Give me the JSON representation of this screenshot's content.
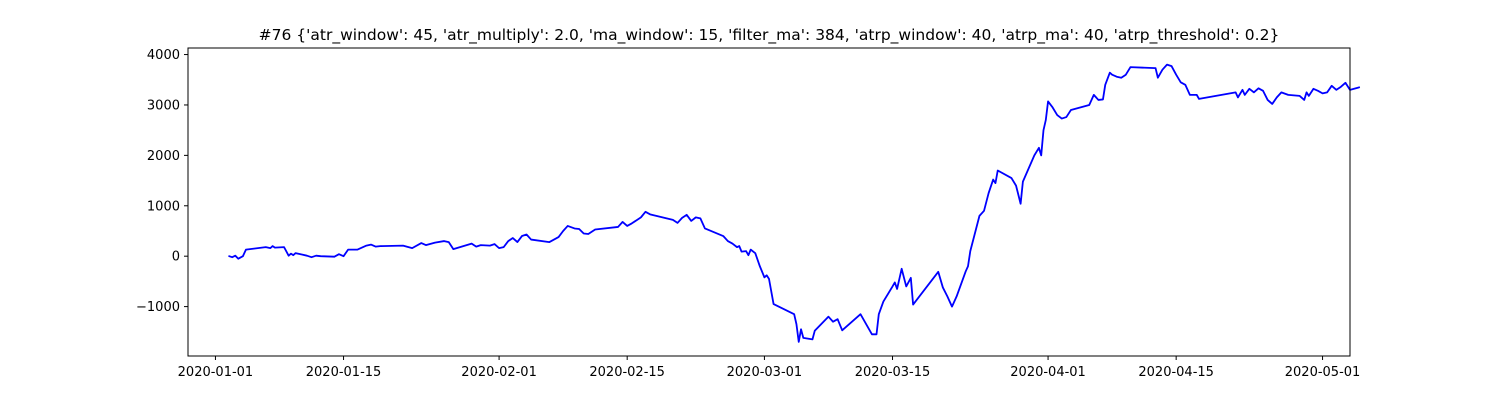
{
  "chart_data": {
    "type": "line",
    "title": "#76 {'atr_window': 45, 'atr_multiply': 2.0, 'ma_window': 15, 'filter_ma': 384, 'atrp_window': 40, 'atrp_ma': 40, 'atrp_threshold': 0.2}",
    "xlabel": "",
    "ylabel": "",
    "xlim": [
      "2019-12-29",
      "2020-05-04"
    ],
    "ylim": [
      -1980,
      4130
    ],
    "grid": false,
    "x_ticks": [
      "2020-01-01",
      "2020-01-15",
      "2020-02-01",
      "2020-02-15",
      "2020-03-01",
      "2020-03-15",
      "2020-04-01",
      "2020-04-15",
      "2020-05-01"
    ],
    "y_ticks": [
      -1000,
      0,
      1000,
      2000,
      3000,
      4000
    ],
    "y_tick_labels": [
      "−1000",
      "0",
      "1000",
      "2000",
      "3000",
      "4000"
    ],
    "series": [
      {
        "color": "#0000ff",
        "points": [
          [
            "2020-01-02 12:00",
            0
          ],
          [
            "2020-01-02 20:00",
            -20
          ],
          [
            "2020-01-03 04:00",
            10
          ],
          [
            "2020-01-03 12:00",
            -50
          ],
          [
            "2020-01-04 00:00",
            0
          ],
          [
            "2020-01-04 08:00",
            130
          ],
          [
            "2020-01-06 12:00",
            180
          ],
          [
            "2020-01-07 00:00",
            160
          ],
          [
            "2020-01-07 06:00",
            200
          ],
          [
            "2020-01-07 12:00",
            170
          ],
          [
            "2020-01-08 12:00",
            180
          ],
          [
            "2020-01-09 00:00",
            10
          ],
          [
            "2020-01-09 06:00",
            50
          ],
          [
            "2020-01-09 12:00",
            20
          ],
          [
            "2020-01-09 18:00",
            60
          ],
          [
            "2020-01-10 12:00",
            30
          ],
          [
            "2020-01-11 00:00",
            10
          ],
          [
            "2020-01-11 12:00",
            -20
          ],
          [
            "2020-01-12 00:00",
            10
          ],
          [
            "2020-01-12 12:00",
            0
          ],
          [
            "2020-01-14 00:00",
            -10
          ],
          [
            "2020-01-14 12:00",
            40
          ],
          [
            "2020-01-15 00:00",
            0
          ],
          [
            "2020-01-15 12:00",
            130
          ],
          [
            "2020-01-16 12:00",
            130
          ],
          [
            "2020-01-17 12:00",
            210
          ],
          [
            "2020-01-18 00:00",
            230
          ],
          [
            "2020-01-18 12:00",
            190
          ],
          [
            "2020-01-19 00:00",
            200
          ],
          [
            "2020-01-21 12:00",
            210
          ],
          [
            "2020-01-22 12:00",
            160
          ],
          [
            "2020-01-23 12:00",
            260
          ],
          [
            "2020-01-24 00:00",
            220
          ],
          [
            "2020-01-25 00:00",
            270
          ],
          [
            "2020-01-26 00:00",
            300
          ],
          [
            "2020-01-26 12:00",
            280
          ],
          [
            "2020-01-27 00:00",
            140
          ],
          [
            "2020-01-29 00:00",
            250
          ],
          [
            "2020-01-29 12:00",
            190
          ],
          [
            "2020-01-30 00:00",
            220
          ],
          [
            "2020-01-31 00:00",
            210
          ],
          [
            "2020-01-31 12:00",
            240
          ],
          [
            "2020-02-01 00:00",
            160
          ],
          [
            "2020-02-01 12:00",
            180
          ],
          [
            "2020-02-02 00:00",
            300
          ],
          [
            "2020-02-02 12:00",
            360
          ],
          [
            "2020-02-03 00:00",
            280
          ],
          [
            "2020-02-03 12:00",
            400
          ],
          [
            "2020-02-04 00:00",
            430
          ],
          [
            "2020-02-04 12:00",
            330
          ],
          [
            "2020-02-06 12:00",
            280
          ],
          [
            "2020-02-07 12:00",
            380
          ],
          [
            "2020-02-08 00:00",
            500
          ],
          [
            "2020-02-08 12:00",
            600
          ],
          [
            "2020-02-09 06:00",
            550
          ],
          [
            "2020-02-09 18:00",
            540
          ],
          [
            "2020-02-10 06:00",
            450
          ],
          [
            "2020-02-10 18:00",
            440
          ],
          [
            "2020-02-11 12:00",
            530
          ],
          [
            "2020-02-14 00:00",
            580
          ],
          [
            "2020-02-14 12:00",
            680
          ],
          [
            "2020-02-15 00:00",
            600
          ],
          [
            "2020-02-15 12:00",
            650
          ],
          [
            "2020-02-16 12:00",
            770
          ],
          [
            "2020-02-17 00:00",
            880
          ],
          [
            "2020-02-17 12:00",
            830
          ],
          [
            "2020-02-20 00:00",
            720
          ],
          [
            "2020-02-20 12:00",
            660
          ],
          [
            "2020-02-21 00:00",
            760
          ],
          [
            "2020-02-21 12:00",
            820
          ],
          [
            "2020-02-22 00:00",
            700
          ],
          [
            "2020-02-22 12:00",
            770
          ],
          [
            "2020-02-23 00:00",
            750
          ],
          [
            "2020-02-23 12:00",
            550
          ],
          [
            "2020-02-25 12:00",
            400
          ],
          [
            "2020-02-26 00:00",
            300
          ],
          [
            "2020-02-26 12:00",
            250
          ],
          [
            "2020-02-27 00:00",
            180
          ],
          [
            "2020-02-27 06:00",
            200
          ],
          [
            "2020-02-27 12:00",
            90
          ],
          [
            "2020-02-28 00:00",
            100
          ],
          [
            "2020-02-28 06:00",
            20
          ],
          [
            "2020-02-28 12:00",
            130
          ],
          [
            "2020-02-29 00:00",
            60
          ],
          [
            "2020-02-29 12:00",
            -200
          ],
          [
            "2020-03-01 00:00",
            -420
          ],
          [
            "2020-03-01 06:00",
            -380
          ],
          [
            "2020-03-01 12:00",
            -450
          ],
          [
            "2020-03-02 00:00",
            -950
          ],
          [
            "2020-03-04 06:00",
            -1150
          ],
          [
            "2020-03-04 12:00",
            -1350
          ],
          [
            "2020-03-04 18:00",
            -1700
          ],
          [
            "2020-03-05 00:00",
            -1450
          ],
          [
            "2020-03-05 06:00",
            -1620
          ],
          [
            "2020-03-06 06:00",
            -1650
          ],
          [
            "2020-03-06 12:00",
            -1480
          ],
          [
            "2020-03-08 00:00",
            -1200
          ],
          [
            "2020-03-08 12:00",
            -1300
          ],
          [
            "2020-03-09 00:00",
            -1250
          ],
          [
            "2020-03-09 12:00",
            -1470
          ],
          [
            "2020-03-11 12:00",
            -1150
          ],
          [
            "2020-03-12 18:00",
            -1550
          ],
          [
            "2020-03-13 06:00",
            -1550
          ],
          [
            "2020-03-13 12:00",
            -1150
          ],
          [
            "2020-03-14 00:00",
            -900
          ],
          [
            "2020-03-15 00:00",
            -600
          ],
          [
            "2020-03-15 06:00",
            -520
          ],
          [
            "2020-03-15 12:00",
            -650
          ],
          [
            "2020-03-16 00:00",
            -250
          ],
          [
            "2020-03-16 12:00",
            -600
          ],
          [
            "2020-03-17 00:00",
            -430
          ],
          [
            "2020-03-17 06:00",
            -960
          ],
          [
            "2020-03-20 00:00",
            -310
          ],
          [
            "2020-03-20 12:00",
            -620
          ],
          [
            "2020-03-21 00:00",
            -800
          ],
          [
            "2020-03-21 12:00",
            -1000
          ],
          [
            "2020-03-22 00:00",
            -800
          ],
          [
            "2020-03-23 00:00",
            -300
          ],
          [
            "2020-03-23 06:00",
            -200
          ],
          [
            "2020-03-23 12:00",
            100
          ],
          [
            "2020-03-24 00:00",
            450
          ],
          [
            "2020-03-24 12:00",
            800
          ],
          [
            "2020-03-25 00:00",
            900
          ],
          [
            "2020-03-25 12:00",
            1250
          ],
          [
            "2020-03-26 00:00",
            1520
          ],
          [
            "2020-03-26 06:00",
            1450
          ],
          [
            "2020-03-26 12:00",
            1700
          ],
          [
            "2020-03-28 00:00",
            1550
          ],
          [
            "2020-03-28 12:00",
            1400
          ],
          [
            "2020-03-29 00:00",
            1040
          ],
          [
            "2020-03-29 06:00",
            1480
          ],
          [
            "2020-03-30 12:00",
            2000
          ],
          [
            "2020-03-31 00:00",
            2150
          ],
          [
            "2020-03-31 06:00",
            2000
          ],
          [
            "2020-03-31 12:00",
            2500
          ],
          [
            "2020-03-31 18:00",
            2700
          ],
          [
            "2020-04-01 00:00",
            3070
          ],
          [
            "2020-04-01 12:00",
            2950
          ],
          [
            "2020-04-02 00:00",
            2800
          ],
          [
            "2020-04-02 12:00",
            2730
          ],
          [
            "2020-04-03 00:00",
            2760
          ],
          [
            "2020-04-03 12:00",
            2900
          ],
          [
            "2020-04-05 12:00",
            3000
          ],
          [
            "2020-04-06 00:00",
            3200
          ],
          [
            "2020-04-06 06:00",
            3150
          ],
          [
            "2020-04-06 12:00",
            3100
          ],
          [
            "2020-04-07 00:00",
            3110
          ],
          [
            "2020-04-07 06:00",
            3400
          ],
          [
            "2020-04-07 18:00",
            3640
          ],
          [
            "2020-04-08 00:00",
            3600
          ],
          [
            "2020-04-08 12:00",
            3560
          ],
          [
            "2020-04-09 00:00",
            3540
          ],
          [
            "2020-04-09 12:00",
            3600
          ],
          [
            "2020-04-10 00:00",
            3750
          ],
          [
            "2020-04-12 18:00",
            3730
          ],
          [
            "2020-04-13 00:00",
            3540
          ],
          [
            "2020-04-13 12:00",
            3700
          ],
          [
            "2020-04-14 00:00",
            3800
          ],
          [
            "2020-04-14 12:00",
            3770
          ],
          [
            "2020-04-15 00:00",
            3600
          ],
          [
            "2020-04-15 12:00",
            3450
          ],
          [
            "2020-04-16 00:00",
            3400
          ],
          [
            "2020-04-16 12:00",
            3200
          ],
          [
            "2020-04-17 06:00",
            3200
          ],
          [
            "2020-04-17 12:00",
            3120
          ],
          [
            "2020-04-21 12:00",
            3250
          ],
          [
            "2020-04-21 18:00",
            3150
          ],
          [
            "2020-04-22 06:00",
            3300
          ],
          [
            "2020-04-22 12:00",
            3200
          ],
          [
            "2020-04-23 00:00",
            3320
          ],
          [
            "2020-04-23 12:00",
            3250
          ],
          [
            "2020-04-24 00:00",
            3330
          ],
          [
            "2020-04-24 12:00",
            3280
          ],
          [
            "2020-04-25 00:00",
            3100
          ],
          [
            "2020-04-25 12:00",
            3020
          ],
          [
            "2020-04-26 00:00",
            3150
          ],
          [
            "2020-04-26 12:00",
            3250
          ],
          [
            "2020-04-27 06:00",
            3200
          ],
          [
            "2020-04-28 12:00",
            3180
          ],
          [
            "2020-04-29 00:00",
            3100
          ],
          [
            "2020-04-29 06:00",
            3250
          ],
          [
            "2020-04-29 12:00",
            3180
          ],
          [
            "2020-04-30 00:00",
            3320
          ],
          [
            "2020-04-30 12:00",
            3280
          ],
          [
            "2020-05-01 00:00",
            3230
          ],
          [
            "2020-05-01 12:00",
            3250
          ],
          [
            "2020-05-02 00:00",
            3380
          ],
          [
            "2020-05-02 12:00",
            3300
          ],
          [
            "2020-05-03 00:00",
            3360
          ],
          [
            "2020-05-03 12:00",
            3440
          ],
          [
            "2020-05-04 00:00",
            3300
          ],
          [
            "2020-05-05 00:00",
            3350
          ]
        ]
      }
    ]
  }
}
